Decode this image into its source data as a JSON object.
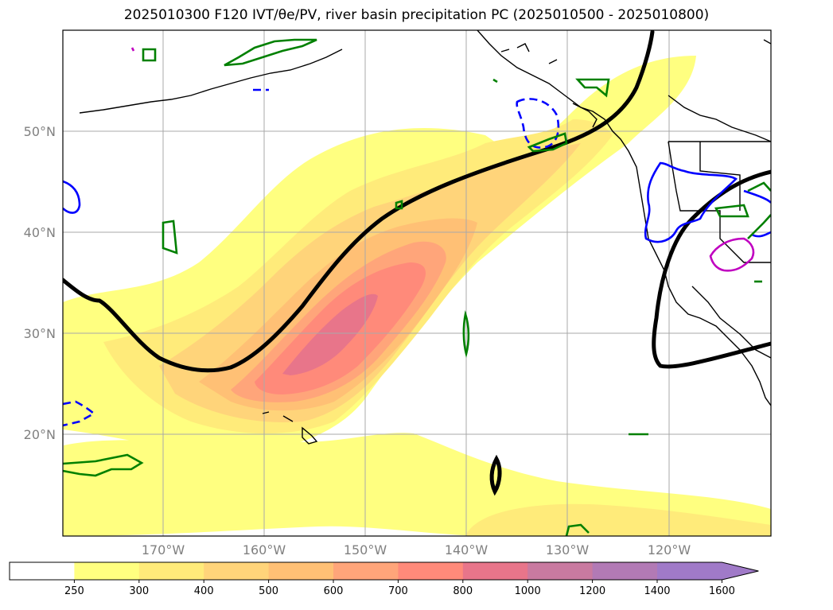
{
  "title": "2025010300 F120 IVT/θe/PV, river basin precipitation PC (2025010500 - 2025010800)",
  "map": {
    "lat_labels": [
      "50°N",
      "40°N",
      "30°N",
      "20°N"
    ],
    "lon_labels": [
      "170°W",
      "160°W",
      "150°W",
      "140°W",
      "130°W",
      "120°W"
    ],
    "grid_color": "#a9a9a9"
  },
  "colorbar": {
    "tick_labels": [
      "250",
      "300",
      "400",
      "500",
      "600",
      "700",
      "800",
      "1000",
      "1200",
      "1400",
      "1600"
    ],
    "colors": [
      "#ffffff",
      "#ffff80",
      "#ffeb7a",
      "#ffd47a",
      "#ffc075",
      "#ffa57a",
      "#ff8a7a",
      "#e8758a",
      "#c97aa0",
      "#b27ab5",
      "#a07ac8"
    ],
    "extend": "max"
  }
}
